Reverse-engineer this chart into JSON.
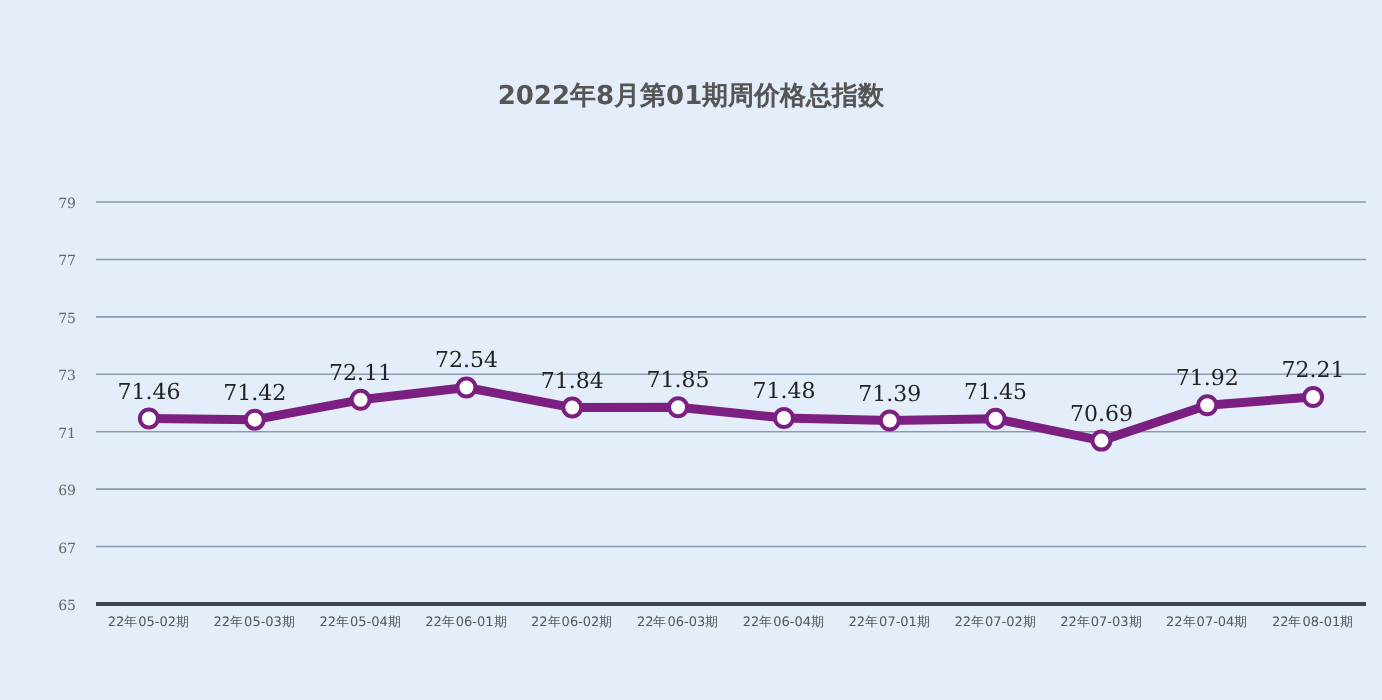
{
  "chart_data": {
    "type": "line",
    "title": "2022年8月第01期周价格总指数",
    "categories": [
      "22年05-02期",
      "22年05-03期",
      "22年05-04期",
      "22年06-01期",
      "22年06-02期",
      "22年06-03期",
      "22年06-04期",
      "22年07-01期",
      "22年07-02期",
      "22年07-03期",
      "22年07-04期",
      "22年08-01期"
    ],
    "series": [
      {
        "color": "#7b1f80",
        "values": [
          71.46,
          71.42,
          72.11,
          72.54,
          71.84,
          71.85,
          71.48,
          71.39,
          71.45,
          70.69,
          71.92,
          72.21
        ]
      }
    ],
    "ylim": [
      65,
      79
    ],
    "yticks": [
      65,
      67,
      69,
      71,
      73,
      75,
      77,
      79
    ],
    "grid": "y",
    "marker": "circle",
    "line_style": "solid",
    "data_labels": true
  }
}
